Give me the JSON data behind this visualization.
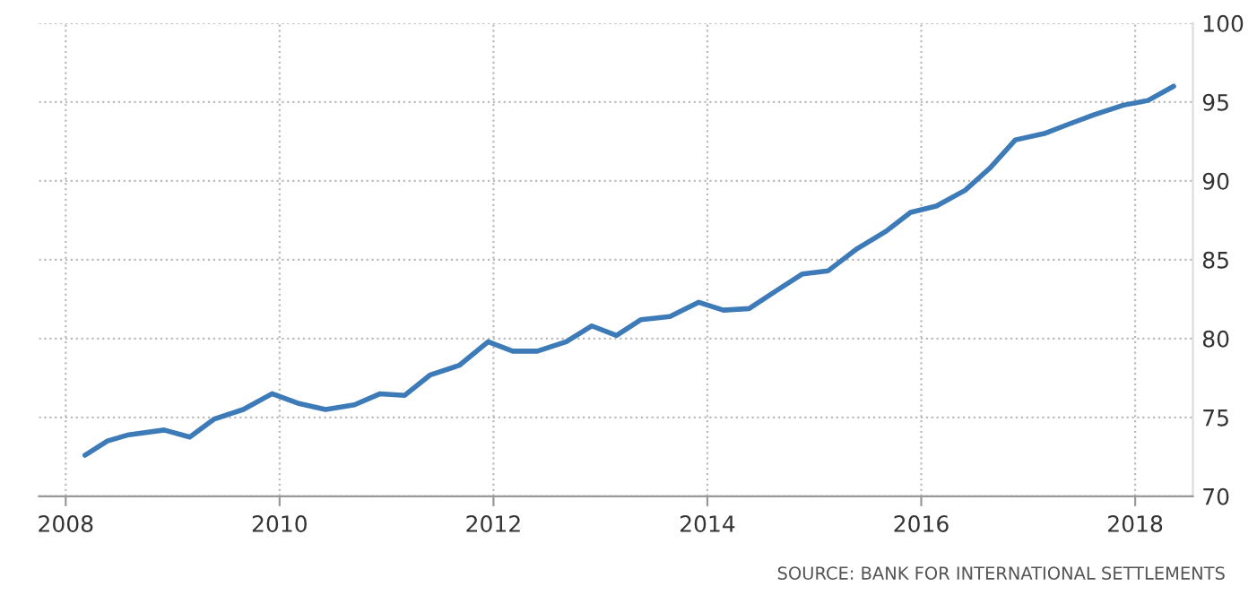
{
  "chart_data": {
    "type": "line",
    "x": [
      2008.18,
      2008.39,
      2008.59,
      2008.92,
      2009.16,
      2009.39,
      2009.66,
      2009.93,
      2010.17,
      2010.43,
      2010.7,
      2010.94,
      2011.17,
      2011.41,
      2011.68,
      2011.95,
      2012.18,
      2012.41,
      2012.68,
      2012.92,
      2013.15,
      2013.38,
      2013.65,
      2013.92,
      2014.15,
      2014.39,
      2014.66,
      2014.89,
      2015.13,
      2015.4,
      2015.67,
      2015.9,
      2016.14,
      2016.41,
      2016.64,
      2016.88,
      2017.15,
      2017.38,
      2017.62,
      2017.89,
      2018.12,
      2018.36
    ],
    "series": [
      {
        "color": "#3d7ab8",
        "values": [
          72.6,
          73.5,
          73.9,
          74.2,
          73.75,
          74.9,
          75.5,
          76.5,
          75.9,
          75.5,
          75.8,
          76.5,
          76.4,
          77.7,
          78.3,
          79.8,
          79.2,
          79.2,
          79.8,
          80.8,
          80.2,
          81.2,
          81.4,
          82.3,
          81.8,
          81.9,
          83.1,
          84.1,
          84.3,
          85.7,
          86.8,
          88.0,
          88.4,
          89.4,
          90.8,
          92.6,
          93.0,
          93.6,
          94.2,
          94.8,
          95.1,
          96.0
        ]
      }
    ],
    "xlim": [
      2007.75,
      2018.54
    ],
    "xticks": [
      2008,
      2010,
      2012,
      2014,
      2016,
      2018
    ],
    "ylim": [
      70,
      100
    ],
    "yticks": [
      70,
      75,
      80,
      85,
      90,
      95,
      100
    ],
    "grid": true,
    "annotations": [
      "SOURCE: BANK FOR INTERNATIONAL SETTLEMENTS"
    ]
  }
}
